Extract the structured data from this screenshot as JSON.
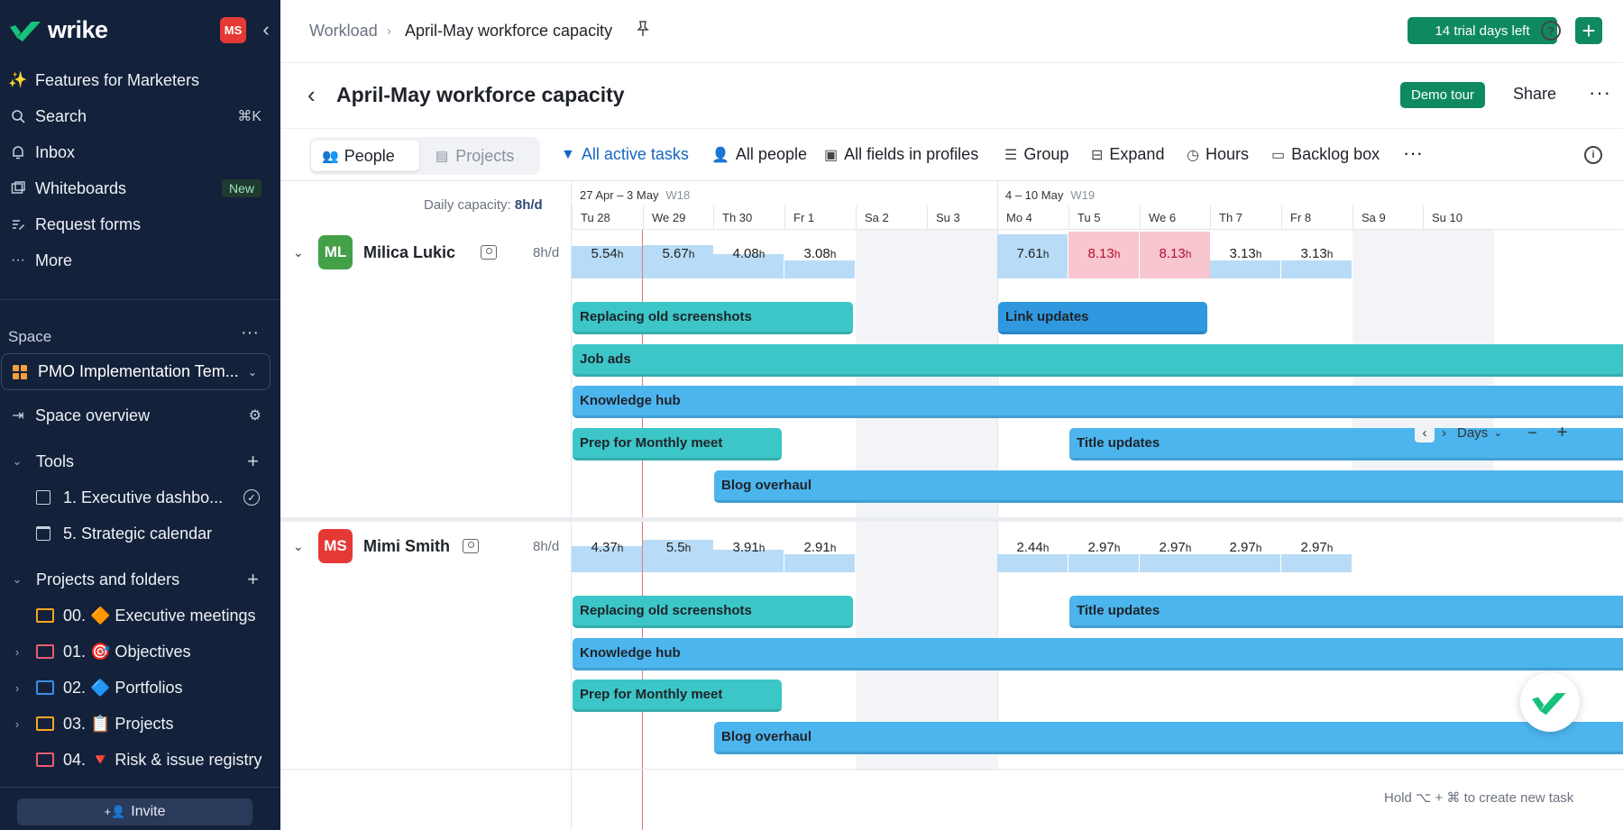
{
  "sidebar": {
    "logo": "wrike",
    "user_initials": "MS",
    "nav": [
      {
        "label": "Features for Marketers",
        "icon": "sparkles-icon"
      },
      {
        "label": "Search",
        "icon": "search-icon",
        "shortcut": "⌘K"
      },
      {
        "label": "Inbox",
        "icon": "bell-icon"
      },
      {
        "label": "Whiteboards",
        "icon": "whiteboard-icon",
        "badge": "New"
      },
      {
        "label": "Request forms",
        "icon": "form-icon"
      },
      {
        "label": "More",
        "icon": "more-icon"
      }
    ],
    "space_label": "Space",
    "space_name": "PMO Implementation Tem...",
    "space_overview": "Space overview",
    "tools_label": "Tools",
    "tools": [
      {
        "label": "1. Executive dashbo..."
      },
      {
        "label": "5. Strategic calendar"
      }
    ],
    "projects_label": "Projects and folders",
    "folders": [
      {
        "label": "00. 🔶 Executive meetings",
        "color": "#f5a623"
      },
      {
        "label": "01. 🎯 Objectives",
        "color": "#e85d75"
      },
      {
        "label": "02. 🔷 Portfolios",
        "color": "#3a8ee6"
      },
      {
        "label": "03. 📋 Projects",
        "color": "#f5a623"
      },
      {
        "label": "04. 🔻 Risk & issue registry",
        "color": "#e85d75"
      }
    ],
    "invite": "Invite"
  },
  "topbar": {
    "crumb_root": "Workload",
    "crumb_current": "April-May workforce capacity",
    "trial": "14 trial days left"
  },
  "titlebar": {
    "title": "April-May workforce capacity",
    "demo": "Demo tour",
    "share": "Share"
  },
  "toolbar": {
    "people": "People",
    "projects": "Projects",
    "filter": "All active tasks",
    "all_people": "All people",
    "fields": "All fields in profiles",
    "group": "Group",
    "expand": "Expand",
    "hours": "Hours",
    "backlog": "Backlog box"
  },
  "grid": {
    "daily_capacity_label": "Daily capacity:",
    "daily_capacity": "8h/d",
    "weeks": [
      {
        "range": "27 Apr – 3 May",
        "week": "W18"
      },
      {
        "range": "4 – 10 May",
        "week": "W19"
      }
    ],
    "days": [
      "Tu 28",
      "We 29",
      "Th 30",
      "Fr 1",
      "Sa 2",
      "Su 3",
      "Mo 4",
      "Tu 5",
      "We 6",
      "Th 7",
      "Fr 8",
      "Sa 9",
      "Su 10"
    ],
    "zoom": "Days",
    "people": [
      {
        "name": "Milica Lukic",
        "initials": "ML",
        "avatar_color": "#43a047",
        "capacity": "8h/d",
        "loads": [
          "5.54",
          "5.67",
          "4.08",
          "3.08",
          "",
          "",
          "7.61",
          "8.13",
          "8.13",
          "3.13",
          "3.13",
          "",
          ""
        ],
        "over": [
          false,
          false,
          false,
          false,
          false,
          false,
          false,
          true,
          true,
          false,
          false,
          false,
          false
        ],
        "tasks": [
          {
            "name": "Replacing old screenshots",
            "color": "teal"
          },
          {
            "name": "Link updates",
            "color": "darkblue"
          },
          {
            "name": "Job ads",
            "color": "teal"
          },
          {
            "name": "Knowledge hub",
            "color": "blue"
          },
          {
            "name": "Prep for Monthly meet",
            "color": "teal"
          },
          {
            "name": "Title updates",
            "color": "blue"
          },
          {
            "name": "Blog overhaul",
            "color": "blue"
          }
        ]
      },
      {
        "name": "Mimi Smith",
        "initials": "MS",
        "avatar_color": "#e53935",
        "capacity": "8h/d",
        "loads": [
          "4.37",
          "5.5",
          "3.91",
          "2.91",
          "",
          "",
          "2.44",
          "2.97",
          "2.97",
          "2.97",
          "2.97",
          "",
          ""
        ],
        "over": [
          false,
          false,
          false,
          false,
          false,
          false,
          false,
          false,
          false,
          false,
          false,
          false,
          false
        ],
        "tasks": [
          {
            "name": "Replacing old screenshots",
            "color": "teal"
          },
          {
            "name": "Title updates",
            "color": "blue"
          },
          {
            "name": "Knowledge hub",
            "color": "blue"
          },
          {
            "name": "Prep for Monthly meet",
            "color": "teal"
          },
          {
            "name": "Blog overhaul",
            "color": "blue"
          }
        ]
      }
    ],
    "hint": "Hold ⌥ + ⌘ to create new task"
  }
}
